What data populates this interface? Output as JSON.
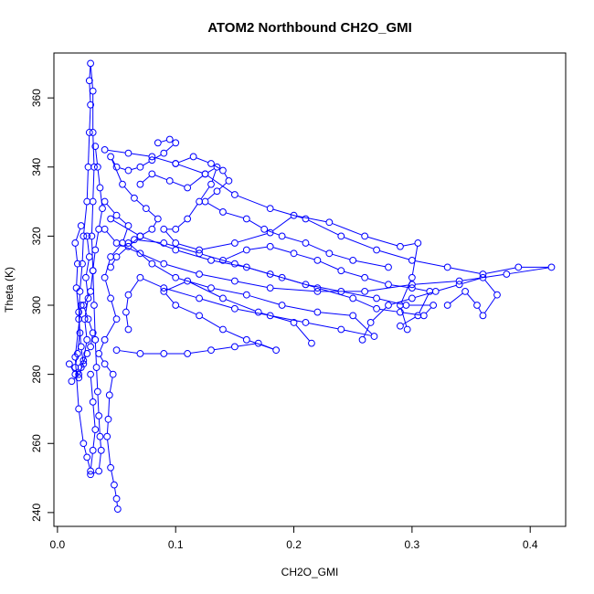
{
  "chart_data": {
    "type": "line",
    "title": "ATOM2 Northbound CH2O_GMI",
    "xlabel": "CH2O_GMI",
    "ylabel": "Theta (K)",
    "xlim": [
      -0.003,
      0.43
    ],
    "ylim": [
      236,
      373
    ],
    "x_ticks": [
      0.0,
      0.1,
      0.2,
      0.3,
      0.4
    ],
    "x_tick_labels": [
      "0.0",
      "0.1",
      "0.2",
      "0.3",
      "0.4"
    ],
    "y_ticks": [
      240,
      260,
      280,
      300,
      320,
      340,
      360
    ],
    "y_tick_labels": [
      "240",
      "260",
      "280",
      "300",
      "320",
      "340",
      "360"
    ],
    "grid": false,
    "marker": "open-circle",
    "color": "#0000ff",
    "series": [
      {
        "points": [
          [
            0.012,
            278
          ],
          [
            0.018,
            280
          ],
          [
            0.022,
            283
          ],
          [
            0.02,
            288
          ],
          [
            0.018,
            296
          ],
          [
            0.019,
            304
          ],
          [
            0.021,
            312
          ],
          [
            0.022,
            320
          ],
          [
            0.025,
            330
          ],
          [
            0.026,
            340
          ],
          [
            0.027,
            350
          ],
          [
            0.028,
            358
          ],
          [
            0.027,
            365
          ],
          [
            0.028,
            370
          ],
          [
            0.03,
            362
          ],
          [
            0.03,
            350
          ],
          [
            0.031,
            340
          ],
          [
            0.03,
            330
          ],
          [
            0.029,
            320
          ],
          [
            0.03,
            310
          ],
          [
            0.031,
            300
          ],
          [
            0.032,
            290
          ],
          [
            0.033,
            282
          ],
          [
            0.034,
            275
          ],
          [
            0.035,
            268
          ],
          [
            0.036,
            262
          ],
          [
            0.037,
            258
          ],
          [
            0.035,
            252
          ],
          [
            0.028,
            251
          ]
        ]
      },
      {
        "points": [
          [
            0.04,
            345
          ],
          [
            0.06,
            344
          ],
          [
            0.08,
            343
          ],
          [
            0.1,
            341
          ],
          [
            0.125,
            338
          ],
          [
            0.15,
            332
          ],
          [
            0.18,
            328
          ],
          [
            0.21,
            325
          ],
          [
            0.24,
            320
          ],
          [
            0.27,
            316
          ],
          [
            0.3,
            313
          ],
          [
            0.33,
            311
          ],
          [
            0.36,
            309
          ],
          [
            0.39,
            311
          ],
          [
            0.418,
            311
          ],
          [
            0.38,
            309
          ],
          [
            0.34,
            307
          ],
          [
            0.3,
            306
          ],
          [
            0.26,
            304
          ],
          [
            0.22,
            304
          ],
          [
            0.18,
            305
          ],
          [
            0.15,
            307
          ],
          [
            0.12,
            309
          ],
          [
            0.09,
            312
          ],
          [
            0.07,
            315
          ],
          [
            0.05,
            318
          ],
          [
            0.04,
            322
          ]
        ]
      },
      {
        "points": [
          [
            0.045,
            325
          ],
          [
            0.07,
            320
          ],
          [
            0.1,
            316
          ],
          [
            0.13,
            313
          ],
          [
            0.16,
            311
          ],
          [
            0.19,
            308
          ],
          [
            0.22,
            305
          ],
          [
            0.25,
            302
          ],
          [
            0.27,
            299
          ],
          [
            0.29,
            298
          ],
          [
            0.31,
            297
          ],
          [
            0.318,
            300
          ],
          [
            0.295,
            300
          ],
          [
            0.27,
            302
          ],
          [
            0.24,
            304
          ],
          [
            0.21,
            306
          ],
          [
            0.18,
            309
          ],
          [
            0.15,
            312
          ],
          [
            0.12,
            315
          ],
          [
            0.09,
            318
          ],
          [
            0.065,
            319
          ]
        ]
      },
      {
        "points": [
          [
            0.06,
            318
          ],
          [
            0.08,
            312
          ],
          [
            0.1,
            308
          ],
          [
            0.13,
            305
          ],
          [
            0.16,
            303
          ],
          [
            0.19,
            300
          ],
          [
            0.22,
            298
          ],
          [
            0.25,
            297
          ],
          [
            0.268,
            291
          ],
          [
            0.24,
            293
          ],
          [
            0.21,
            295
          ],
          [
            0.18,
            297
          ],
          [
            0.15,
            299
          ],
          [
            0.12,
            302
          ],
          [
            0.09,
            305
          ],
          [
            0.07,
            308
          ],
          [
            0.06,
            303
          ],
          [
            0.058,
            298
          ],
          [
            0.06,
            293
          ]
        ]
      },
      {
        "points": [
          [
            0.05,
            287
          ],
          [
            0.07,
            286
          ],
          [
            0.09,
            286
          ],
          [
            0.11,
            286
          ],
          [
            0.13,
            287
          ],
          [
            0.15,
            288
          ],
          [
            0.17,
            289
          ],
          [
            0.185,
            287
          ],
          [
            0.16,
            290
          ],
          [
            0.14,
            293
          ],
          [
            0.12,
            297
          ],
          [
            0.1,
            300
          ],
          [
            0.09,
            304
          ],
          [
            0.11,
            307
          ],
          [
            0.14,
            302
          ],
          [
            0.17,
            298
          ],
          [
            0.2,
            295
          ],
          [
            0.215,
            289
          ]
        ]
      },
      {
        "points": [
          [
            0.07,
            335
          ],
          [
            0.08,
            338
          ],
          [
            0.095,
            336
          ],
          [
            0.11,
            334
          ],
          [
            0.125,
            338
          ],
          [
            0.135,
            340
          ],
          [
            0.13,
            335
          ],
          [
            0.12,
            330
          ],
          [
            0.11,
            325
          ],
          [
            0.1,
            322
          ],
          [
            0.09,
            322
          ],
          [
            0.1,
            318
          ],
          [
            0.12,
            316
          ],
          [
            0.15,
            318
          ],
          [
            0.18,
            321
          ],
          [
            0.2,
            326
          ],
          [
            0.23,
            324
          ],
          [
            0.26,
            320
          ],
          [
            0.29,
            317
          ],
          [
            0.305,
            318
          ],
          [
            0.3,
            308
          ],
          [
            0.29,
            300
          ],
          [
            0.296,
            293
          ]
        ]
      },
      {
        "points": [
          [
            0.04,
            330
          ],
          [
            0.05,
            326
          ],
          [
            0.06,
            323
          ],
          [
            0.055,
            318
          ],
          [
            0.045,
            314
          ],
          [
            0.04,
            308
          ],
          [
            0.045,
            302
          ],
          [
            0.05,
            296
          ],
          [
            0.04,
            290
          ],
          [
            0.035,
            286
          ],
          [
            0.04,
            283
          ],
          [
            0.047,
            280
          ],
          [
            0.044,
            274
          ],
          [
            0.043,
            267
          ],
          [
            0.042,
            262
          ],
          [
            0.045,
            253
          ],
          [
            0.048,
            248
          ],
          [
            0.05,
            244
          ],
          [
            0.051,
            241
          ]
        ]
      },
      {
        "points": [
          [
            0.02,
            323
          ],
          [
            0.015,
            318
          ],
          [
            0.017,
            312
          ],
          [
            0.016,
            305
          ],
          [
            0.018,
            298
          ],
          [
            0.019,
            292
          ],
          [
            0.017,
            286
          ],
          [
            0.015,
            282
          ],
          [
            0.018,
            279
          ],
          [
            0.022,
            284
          ],
          [
            0.025,
            290
          ],
          [
            0.023,
            296
          ],
          [
            0.026,
            302
          ],
          [
            0.024,
            308
          ],
          [
            0.027,
            314
          ],
          [
            0.025,
            320
          ]
        ]
      },
      {
        "points": [
          [
            0.085,
            347
          ],
          [
            0.095,
            348
          ],
          [
            0.1,
            347
          ],
          [
            0.09,
            344
          ],
          [
            0.08,
            342
          ],
          [
            0.07,
            340
          ],
          [
            0.06,
            339
          ],
          [
            0.05,
            340
          ],
          [
            0.045,
            343
          ],
          [
            0.055,
            335
          ],
          [
            0.065,
            331
          ],
          [
            0.075,
            328
          ],
          [
            0.085,
            325
          ],
          [
            0.08,
            322
          ],
          [
            0.07,
            320
          ],
          [
            0.06,
            317
          ],
          [
            0.05,
            314
          ],
          [
            0.045,
            311
          ]
        ]
      },
      {
        "points": [
          [
            0.33,
            300
          ],
          [
            0.345,
            304
          ],
          [
            0.355,
            300
          ],
          [
            0.36,
            297
          ],
          [
            0.372,
            303
          ],
          [
            0.36,
            308
          ],
          [
            0.34,
            306
          ],
          [
            0.32,
            304
          ],
          [
            0.3,
            302
          ],
          [
            0.28,
            300
          ],
          [
            0.265,
            295
          ],
          [
            0.258,
            290
          ]
        ]
      },
      {
        "points": [
          [
            0.14,
            313
          ],
          [
            0.16,
            316
          ],
          [
            0.18,
            317
          ],
          [
            0.2,
            315
          ],
          [
            0.22,
            313
          ],
          [
            0.24,
            310
          ],
          [
            0.26,
            308
          ],
          [
            0.28,
            306
          ],
          [
            0.3,
            305
          ],
          [
            0.315,
            304
          ],
          [
            0.305,
            297
          ],
          [
            0.29,
            294
          ]
        ]
      },
      {
        "points": [
          [
            0.01,
            283
          ],
          [
            0.015,
            280
          ],
          [
            0.02,
            282
          ],
          [
            0.025,
            286
          ],
          [
            0.028,
            288
          ],
          [
            0.03,
            292
          ],
          [
            0.026,
            296
          ],
          [
            0.022,
            300
          ],
          [
            0.028,
            304
          ],
          [
            0.03,
            310
          ],
          [
            0.032,
            316
          ],
          [
            0.035,
            322
          ],
          [
            0.038,
            328
          ],
          [
            0.036,
            334
          ],
          [
            0.034,
            340
          ],
          [
            0.032,
            346
          ]
        ]
      },
      {
        "points": [
          [
            0.02,
            300
          ],
          [
            0.015,
            285
          ],
          [
            0.018,
            270
          ],
          [
            0.022,
            260
          ],
          [
            0.025,
            256
          ],
          [
            0.028,
            252
          ],
          [
            0.03,
            258
          ],
          [
            0.032,
            264
          ],
          [
            0.03,
            272
          ],
          [
            0.028,
            280
          ]
        ]
      },
      {
        "points": [
          [
            0.1,
            341
          ],
          [
            0.115,
            343
          ],
          [
            0.13,
            341
          ],
          [
            0.14,
            339
          ],
          [
            0.145,
            336
          ],
          [
            0.135,
            333
          ],
          [
            0.125,
            330
          ],
          [
            0.14,
            327
          ],
          [
            0.16,
            325
          ],
          [
            0.175,
            322
          ],
          [
            0.19,
            320
          ],
          [
            0.21,
            318
          ],
          [
            0.23,
            315
          ],
          [
            0.25,
            313
          ],
          [
            0.28,
            311
          ]
        ]
      }
    ]
  }
}
